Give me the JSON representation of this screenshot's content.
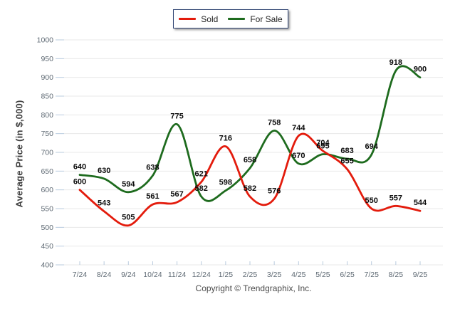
{
  "legend": {
    "items": [
      {
        "label": "Sold",
        "color": "#e31b0c"
      },
      {
        "label": "For Sale",
        "color": "#1e6b1e"
      }
    ]
  },
  "chart_data": {
    "type": "line",
    "title": "",
    "ylabel": "Average Price (in $,000)",
    "xlabel": "",
    "categories": [
      "7/24",
      "8/24",
      "9/24",
      "10/24",
      "11/24",
      "12/24",
      "1/25",
      "2/25",
      "3/25",
      "4/25",
      "5/25",
      "6/25",
      "7/25",
      "8/25",
      "9/25"
    ],
    "series": [
      {
        "name": "Sold",
        "color": "#e31b0c",
        "values": [
          600,
          543,
          505,
          561,
          567,
          621,
          716,
          582,
          576,
          744,
          704,
          655,
          550,
          557,
          544
        ]
      },
      {
        "name": "For Sale",
        "color": "#1e6b1e",
        "values": [
          640,
          630,
          594,
          638,
          775,
          582,
          598,
          658,
          758,
          670,
          695,
          683,
          694,
          918,
          900
        ]
      }
    ],
    "ylim": [
      400,
      1000
    ],
    "ytick_step": 50,
    "grid": "horizontal",
    "legend_position": "top-center",
    "smoothing": "spline",
    "point_labels": true
  },
  "footer": {
    "copyright": "Copyright © Trendgraphix, Inc."
  },
  "colors": {
    "gridline": "#e8e8e8",
    "tick_mark": "#b9cbde",
    "tick_label": "#5f6a74",
    "point_label": "#0a0a0a",
    "legend_border": "#2e4372"
  }
}
